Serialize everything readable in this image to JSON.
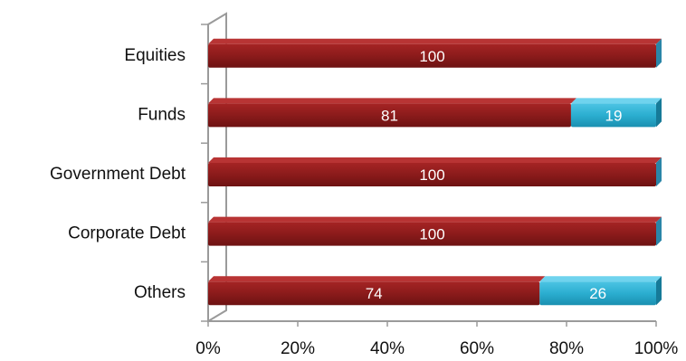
{
  "chart_data": {
    "type": "bar",
    "orientation": "horizontal",
    "stacked": true,
    "percent_stacked": true,
    "categories": [
      "Equities",
      "Funds",
      "Government Debt",
      "Corporate Debt",
      "Others"
    ],
    "series": [
      {
        "values": [
          100,
          81,
          100,
          100,
          74
        ],
        "color": "#8B1A1A"
      },
      {
        "values": [
          0,
          19,
          0,
          0,
          26
        ],
        "color": "#2BAFD1"
      }
    ],
    "xlim": [
      0,
      100
    ],
    "x_ticks": [
      "0%",
      "20%",
      "40%",
      "60%",
      "80%",
      "100%"
    ],
    "x_tick_values": [
      0,
      20,
      40,
      60,
      80,
      100
    ],
    "title": "",
    "xlabel": "",
    "ylabel": "",
    "grid": false,
    "legend": "none",
    "style": "3d"
  }
}
